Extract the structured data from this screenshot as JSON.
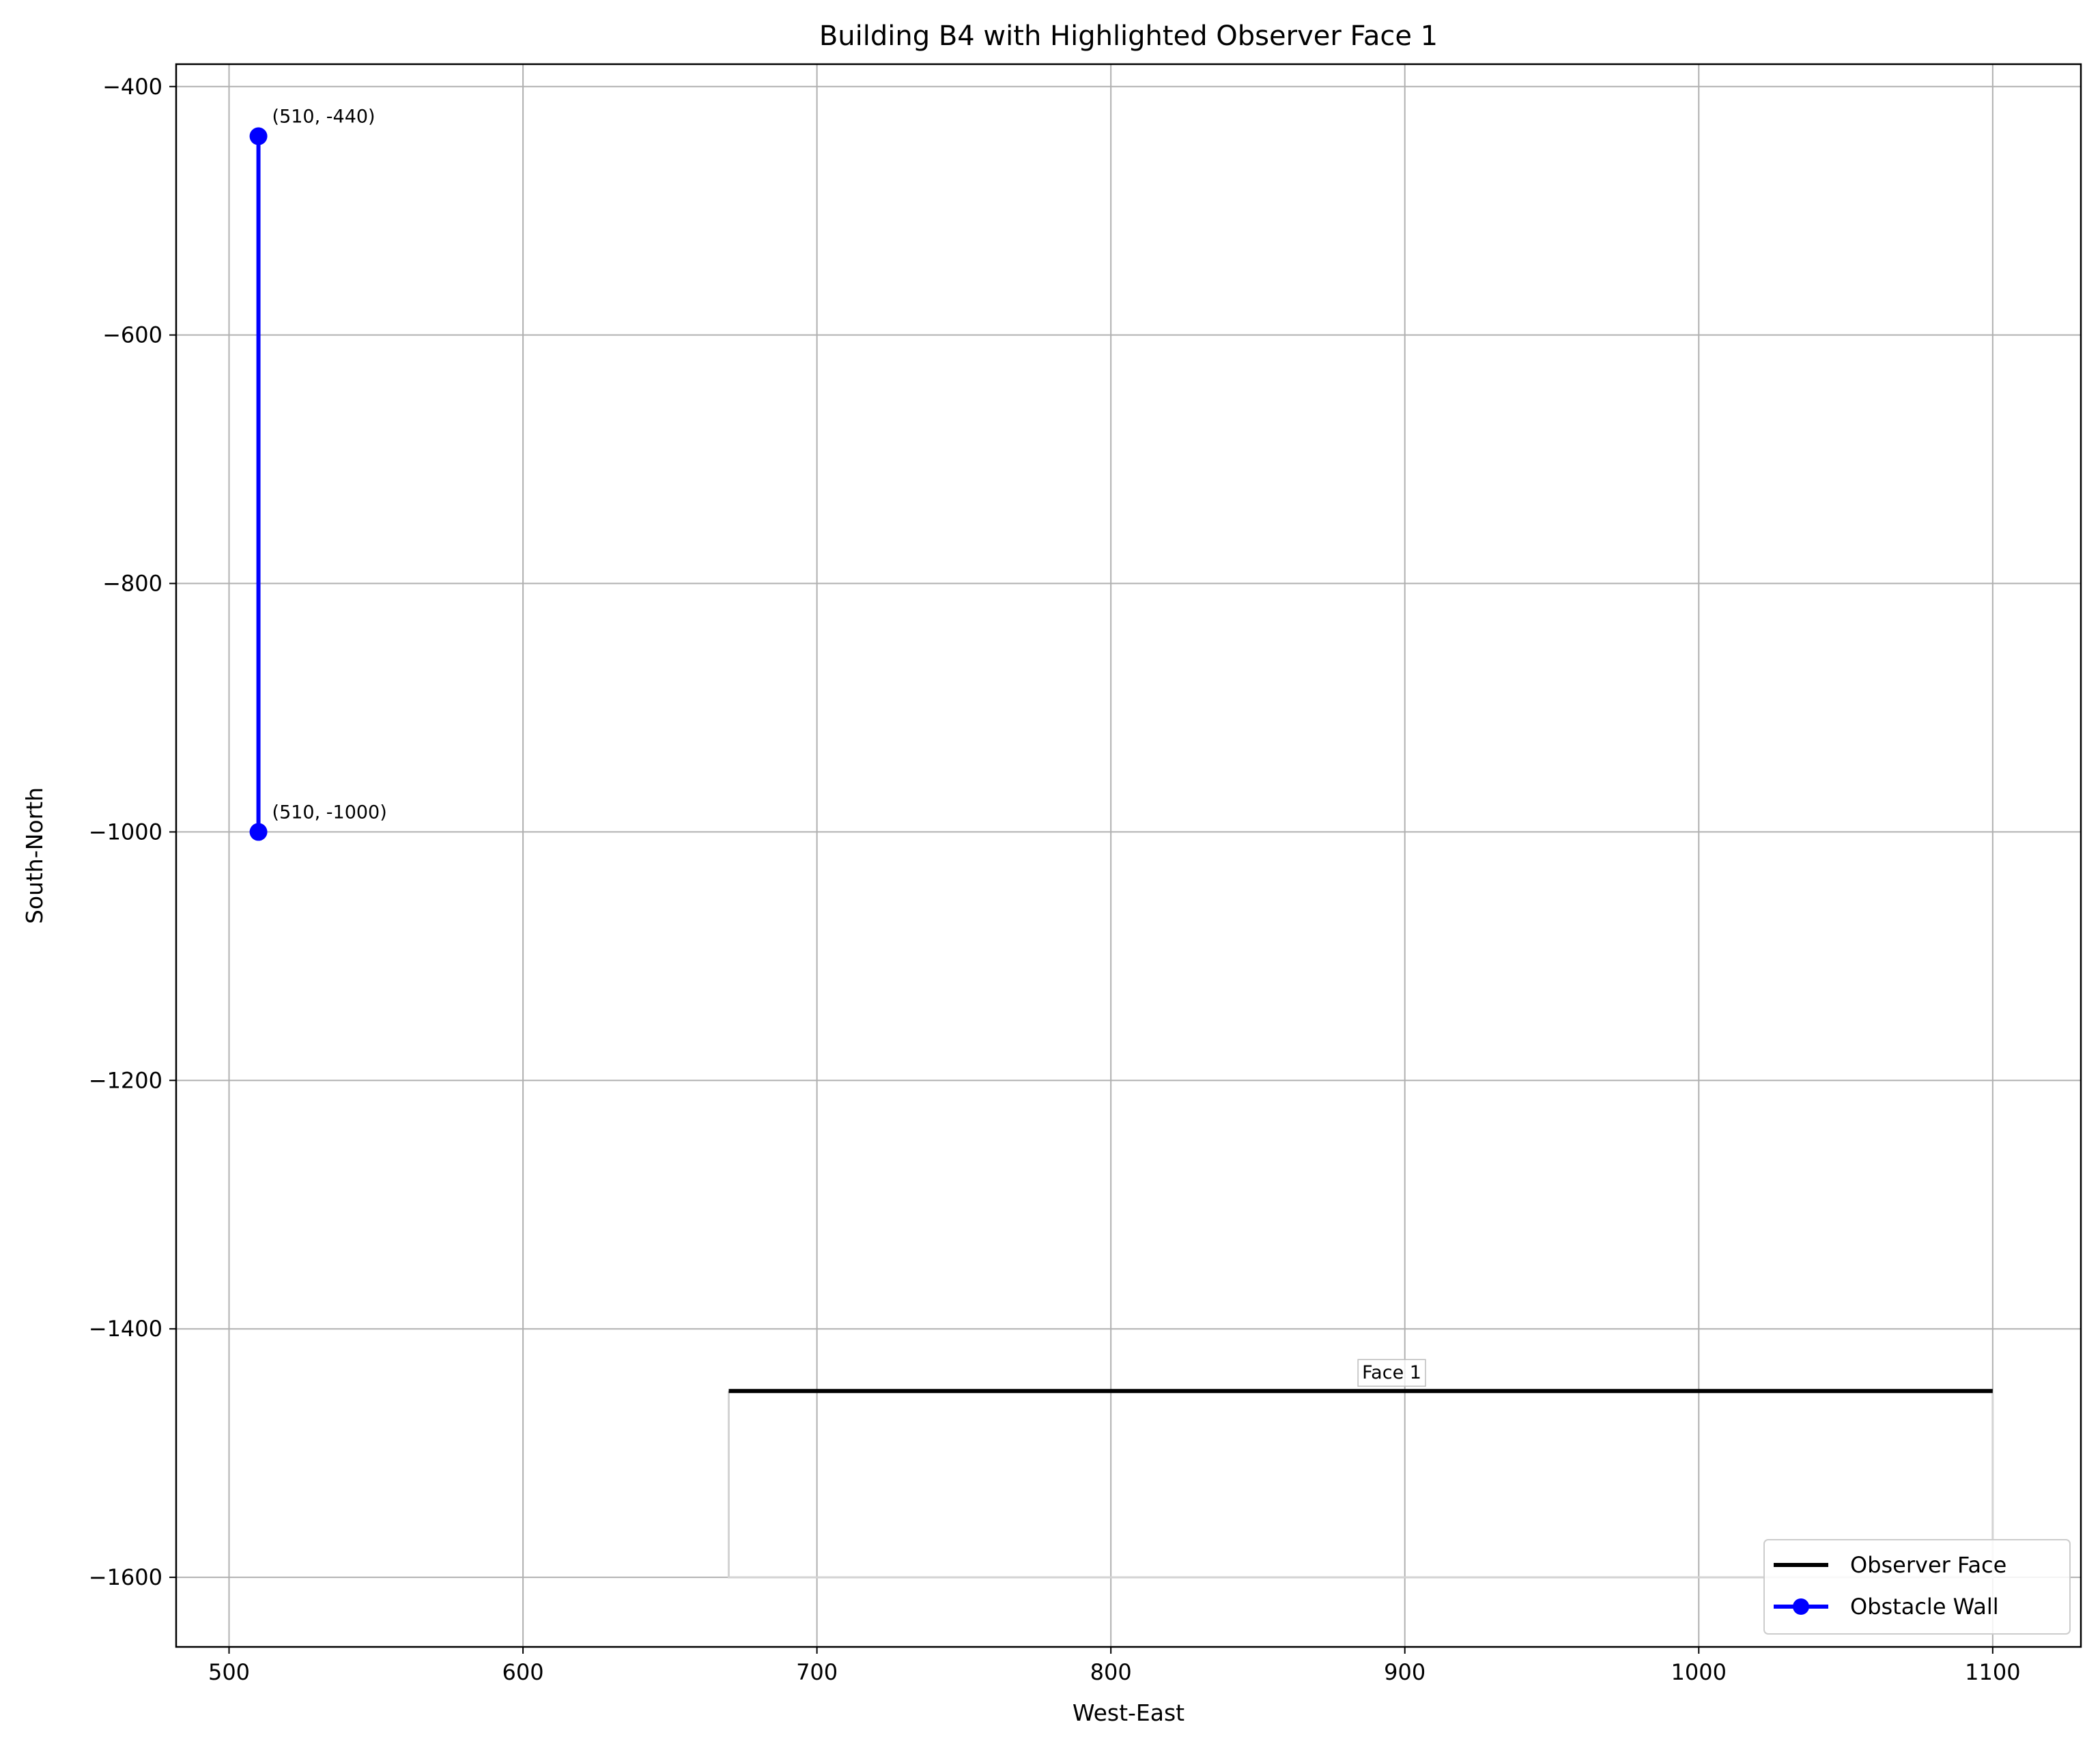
{
  "chart_data": {
    "type": "line",
    "title": "Building B4 with Highlighted Observer Face 1",
    "xlabel": "West-East",
    "ylabel": "South-North",
    "xlim": [
      482,
      1130
    ],
    "ylim": [
      -1656,
      -382
    ],
    "xticks": [
      500,
      600,
      700,
      800,
      900,
      1000,
      1100
    ],
    "yticks": [
      -400,
      -600,
      -800,
      -1000,
      -1200,
      -1400,
      -1600
    ],
    "xtick_labels": [
      "500",
      "600",
      "700",
      "800",
      "900",
      "1000",
      "1100"
    ],
    "ytick_labels": [
      "−400",
      "−600",
      "−800",
      "−1000",
      "−1200",
      "−1400",
      "−1600"
    ],
    "grid": true,
    "legend_position": "lower-right",
    "building_outline": {
      "color": "#d3d3d3",
      "x": [
        670,
        670,
        1100,
        1100
      ],
      "y": [
        -1450,
        -1600,
        -1600,
        -1450
      ]
    },
    "series": [
      {
        "name": "Observer Face",
        "color": "#000000",
        "marker": "none",
        "x": [
          670,
          1100
        ],
        "y": [
          -1450,
          -1450
        ]
      },
      {
        "name": "Obstacle Wall",
        "color": "#0000ff",
        "marker": "circle",
        "x": [
          510,
          510
        ],
        "y": [
          -440,
          -1000
        ]
      }
    ],
    "annotations": [
      {
        "text": "(510, -440)",
        "x": 510,
        "y": -440
      },
      {
        "text": "(510, -1000)",
        "x": 510,
        "y": -1000
      },
      {
        "text": "Face 1",
        "x": 885,
        "y": -1450
      }
    ]
  }
}
